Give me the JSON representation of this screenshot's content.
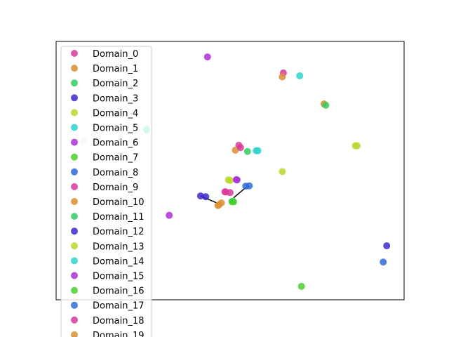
{
  "chart_data": {
    "type": "scatter",
    "title": "",
    "xlabel": "",
    "ylabel": "",
    "xlim": [
      0,
      100
    ],
    "ylim": [
      0,
      100
    ],
    "grid": false,
    "axes_ticks": false,
    "legend": {
      "location": "upper-left",
      "overflows_bottom": true
    },
    "series": [
      {
        "name": "Domain_0",
        "color": "#d9399b",
        "points": [
          [
            65.3,
            87.8
          ],
          [
            52.5,
            59.8
          ],
          [
            48.5,
            41.8
          ]
        ]
      },
      {
        "name": "Domain_1",
        "color": "#d98e32",
        "points": [
          [
            65.0,
            86.3
          ],
          [
            77.0,
            75.8
          ],
          [
            51.5,
            57.9
          ]
        ]
      },
      {
        "name": "Domain_2",
        "color": "#32cc62",
        "points": [
          [
            26.0,
            65.7
          ],
          [
            77.5,
            75.3
          ],
          [
            55.0,
            57.4
          ]
        ]
      },
      {
        "name": "Domain_3",
        "color": "#3c2bcb",
        "points": [
          [
            41.5,
            40.2
          ],
          [
            43.0,
            39.9
          ]
        ]
      },
      {
        "name": "Domain_4",
        "color": "#b7d92c",
        "points": [
          [
            65.0,
            49.6
          ],
          [
            86.0,
            59.6
          ],
          [
            50.0,
            46.2
          ]
        ]
      },
      {
        "name": "Domain_5",
        "color": "#2ed2cf",
        "points": [
          [
            70.0,
            86.7
          ],
          [
            57.5,
            57.7
          ],
          [
            26.0,
            66.0
          ]
        ]
      },
      {
        "name": "Domain_6",
        "color": "#aa2fd4",
        "points": [
          [
            43.5,
            94.0
          ],
          [
            32.5,
            32.7
          ],
          [
            52.0,
            46.4
          ]
        ]
      },
      {
        "name": "Domain_7",
        "color": "#4bcf2a",
        "points": [
          [
            70.5,
            5.2
          ],
          [
            50.5,
            38.0
          ]
        ]
      },
      {
        "name": "Domain_8",
        "color": "#2f6ad8",
        "points": [
          [
            94.0,
            14.6
          ],
          [
            55.5,
            44.1
          ]
        ]
      },
      {
        "name": "Domain_9",
        "color": "#d9399b",
        "points": [
          [
            48.8,
            41.7
          ],
          [
            53.0,
            58.9
          ]
        ]
      },
      {
        "name": "Domain_10",
        "color": "#d98e32",
        "points": [
          [
            46.5,
            36.5
          ],
          [
            47.5,
            37.5
          ]
        ]
      },
      {
        "name": "Domain_11",
        "color": "#32cc62",
        "points": [
          [
            50.8,
            38.1
          ]
        ]
      },
      {
        "name": "Domain_12",
        "color": "#3c2bcb",
        "points": [
          [
            95.0,
            20.9
          ]
        ]
      },
      {
        "name": "Domain_13",
        "color": "#b7d92c",
        "points": [
          [
            86.5,
            59.6
          ],
          [
            49.5,
            46.4
          ]
        ]
      },
      {
        "name": "Domain_14",
        "color": "#2ed2cf",
        "points": [
          [
            58.0,
            57.7
          ]
        ]
      },
      {
        "name": "Domain_15",
        "color": "#aa2fd4",
        "points": [
          [
            51.8,
            46.5
          ]
        ]
      },
      {
        "name": "Domain_16",
        "color": "#4bcf2a",
        "points": [
          [
            51.0,
            37.9
          ]
        ]
      },
      {
        "name": "Domain_17",
        "color": "#2f6ad8",
        "points": [
          [
            54.5,
            44.0
          ]
        ]
      },
      {
        "name": "Domain_18",
        "color": "#d9399b",
        "points": [
          [
            50.0,
            41.5
          ]
        ]
      },
      {
        "name": "Domain_19",
        "color": "#d98e32",
        "points": [
          [
            46.8,
            36.8
          ]
        ]
      }
    ],
    "connector_lines": [
      [
        [
          41.5,
          40.2
        ],
        [
          47.0,
          37.0
        ]
      ],
      [
        [
          51.0,
          39.5
        ],
        [
          55.0,
          44.0
        ]
      ]
    ],
    "faint_markers": [
      {
        "color": "#dcd6f5",
        "point": [
          7.8,
          61.5
        ]
      },
      {
        "color": "#d6f3df",
        "point": [
          26.0,
          66.2
        ]
      }
    ]
  }
}
